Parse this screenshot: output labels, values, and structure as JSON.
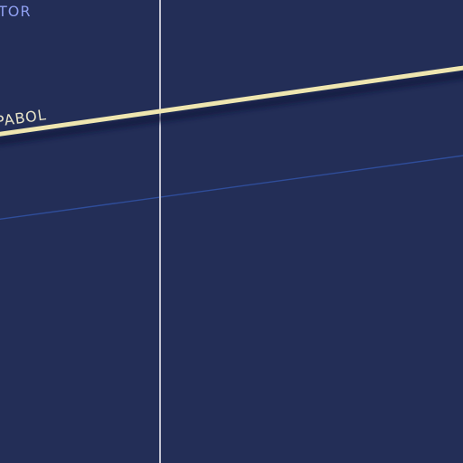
{
  "map": {
    "colors": {
      "background": "#232e57",
      "meridian_line": "#c4c4d2",
      "primary_road": "#efe6b0",
      "road_shadow": "#10163a",
      "minor_line": "#2f4d9a",
      "label_top": "#8f9ff0",
      "label_road": "#e8e4c8"
    },
    "labels": {
      "top_left": "TOR",
      "road": "PABOL"
    }
  }
}
